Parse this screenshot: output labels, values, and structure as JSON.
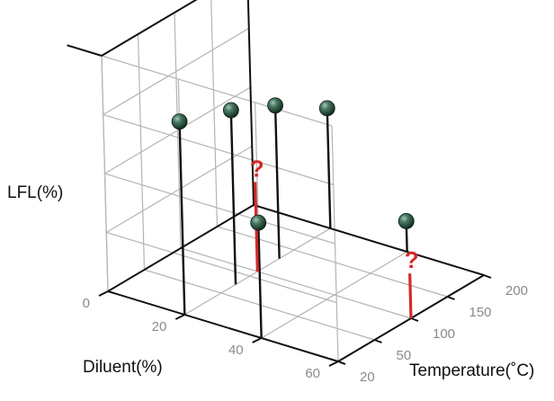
{
  "chart_data": {
    "type": "scatter3d",
    "title": "",
    "axes": {
      "z_label": "LFL(%)",
      "diluent_label": "Diluent(%)",
      "temperature_label": "Temperature(˚C)",
      "diluent_ticks": [
        "0",
        "20",
        "40",
        "60"
      ],
      "temperature_ticks": [
        "20",
        "50",
        "100",
        "150",
        "200"
      ],
      "diluent_range": [
        0,
        60
      ],
      "temperature_range": [
        20,
        200
      ],
      "z_range": [
        0,
        100
      ],
      "grid": true
    },
    "points": [
      {
        "diluent": 20,
        "temperature": 20,
        "lfl": 82
      },
      {
        "diluent": 20,
        "temperature": 70,
        "lfl": 74
      },
      {
        "diluent": 40,
        "temperature": 20,
        "lfl": 49
      },
      {
        "diluent": 20,
        "temperature": 130,
        "lfl": 65
      },
      {
        "diluent": 20,
        "temperature": 200,
        "lfl": 51
      },
      {
        "diluent": 40,
        "temperature": 200,
        "lfl": 13
      }
    ],
    "unknown_points": [
      {
        "diluent": 20,
        "temperature": 100,
        "lfl": 38,
        "label": "?"
      },
      {
        "diluent": 60,
        "temperature": 100,
        "lfl": 19,
        "label": "?"
      }
    ],
    "colors": {
      "marker": "#2f5a47",
      "stem": "#111111",
      "unknown": "#d42a2a",
      "grid": "#b4b4b4",
      "frame": "#111111"
    }
  }
}
